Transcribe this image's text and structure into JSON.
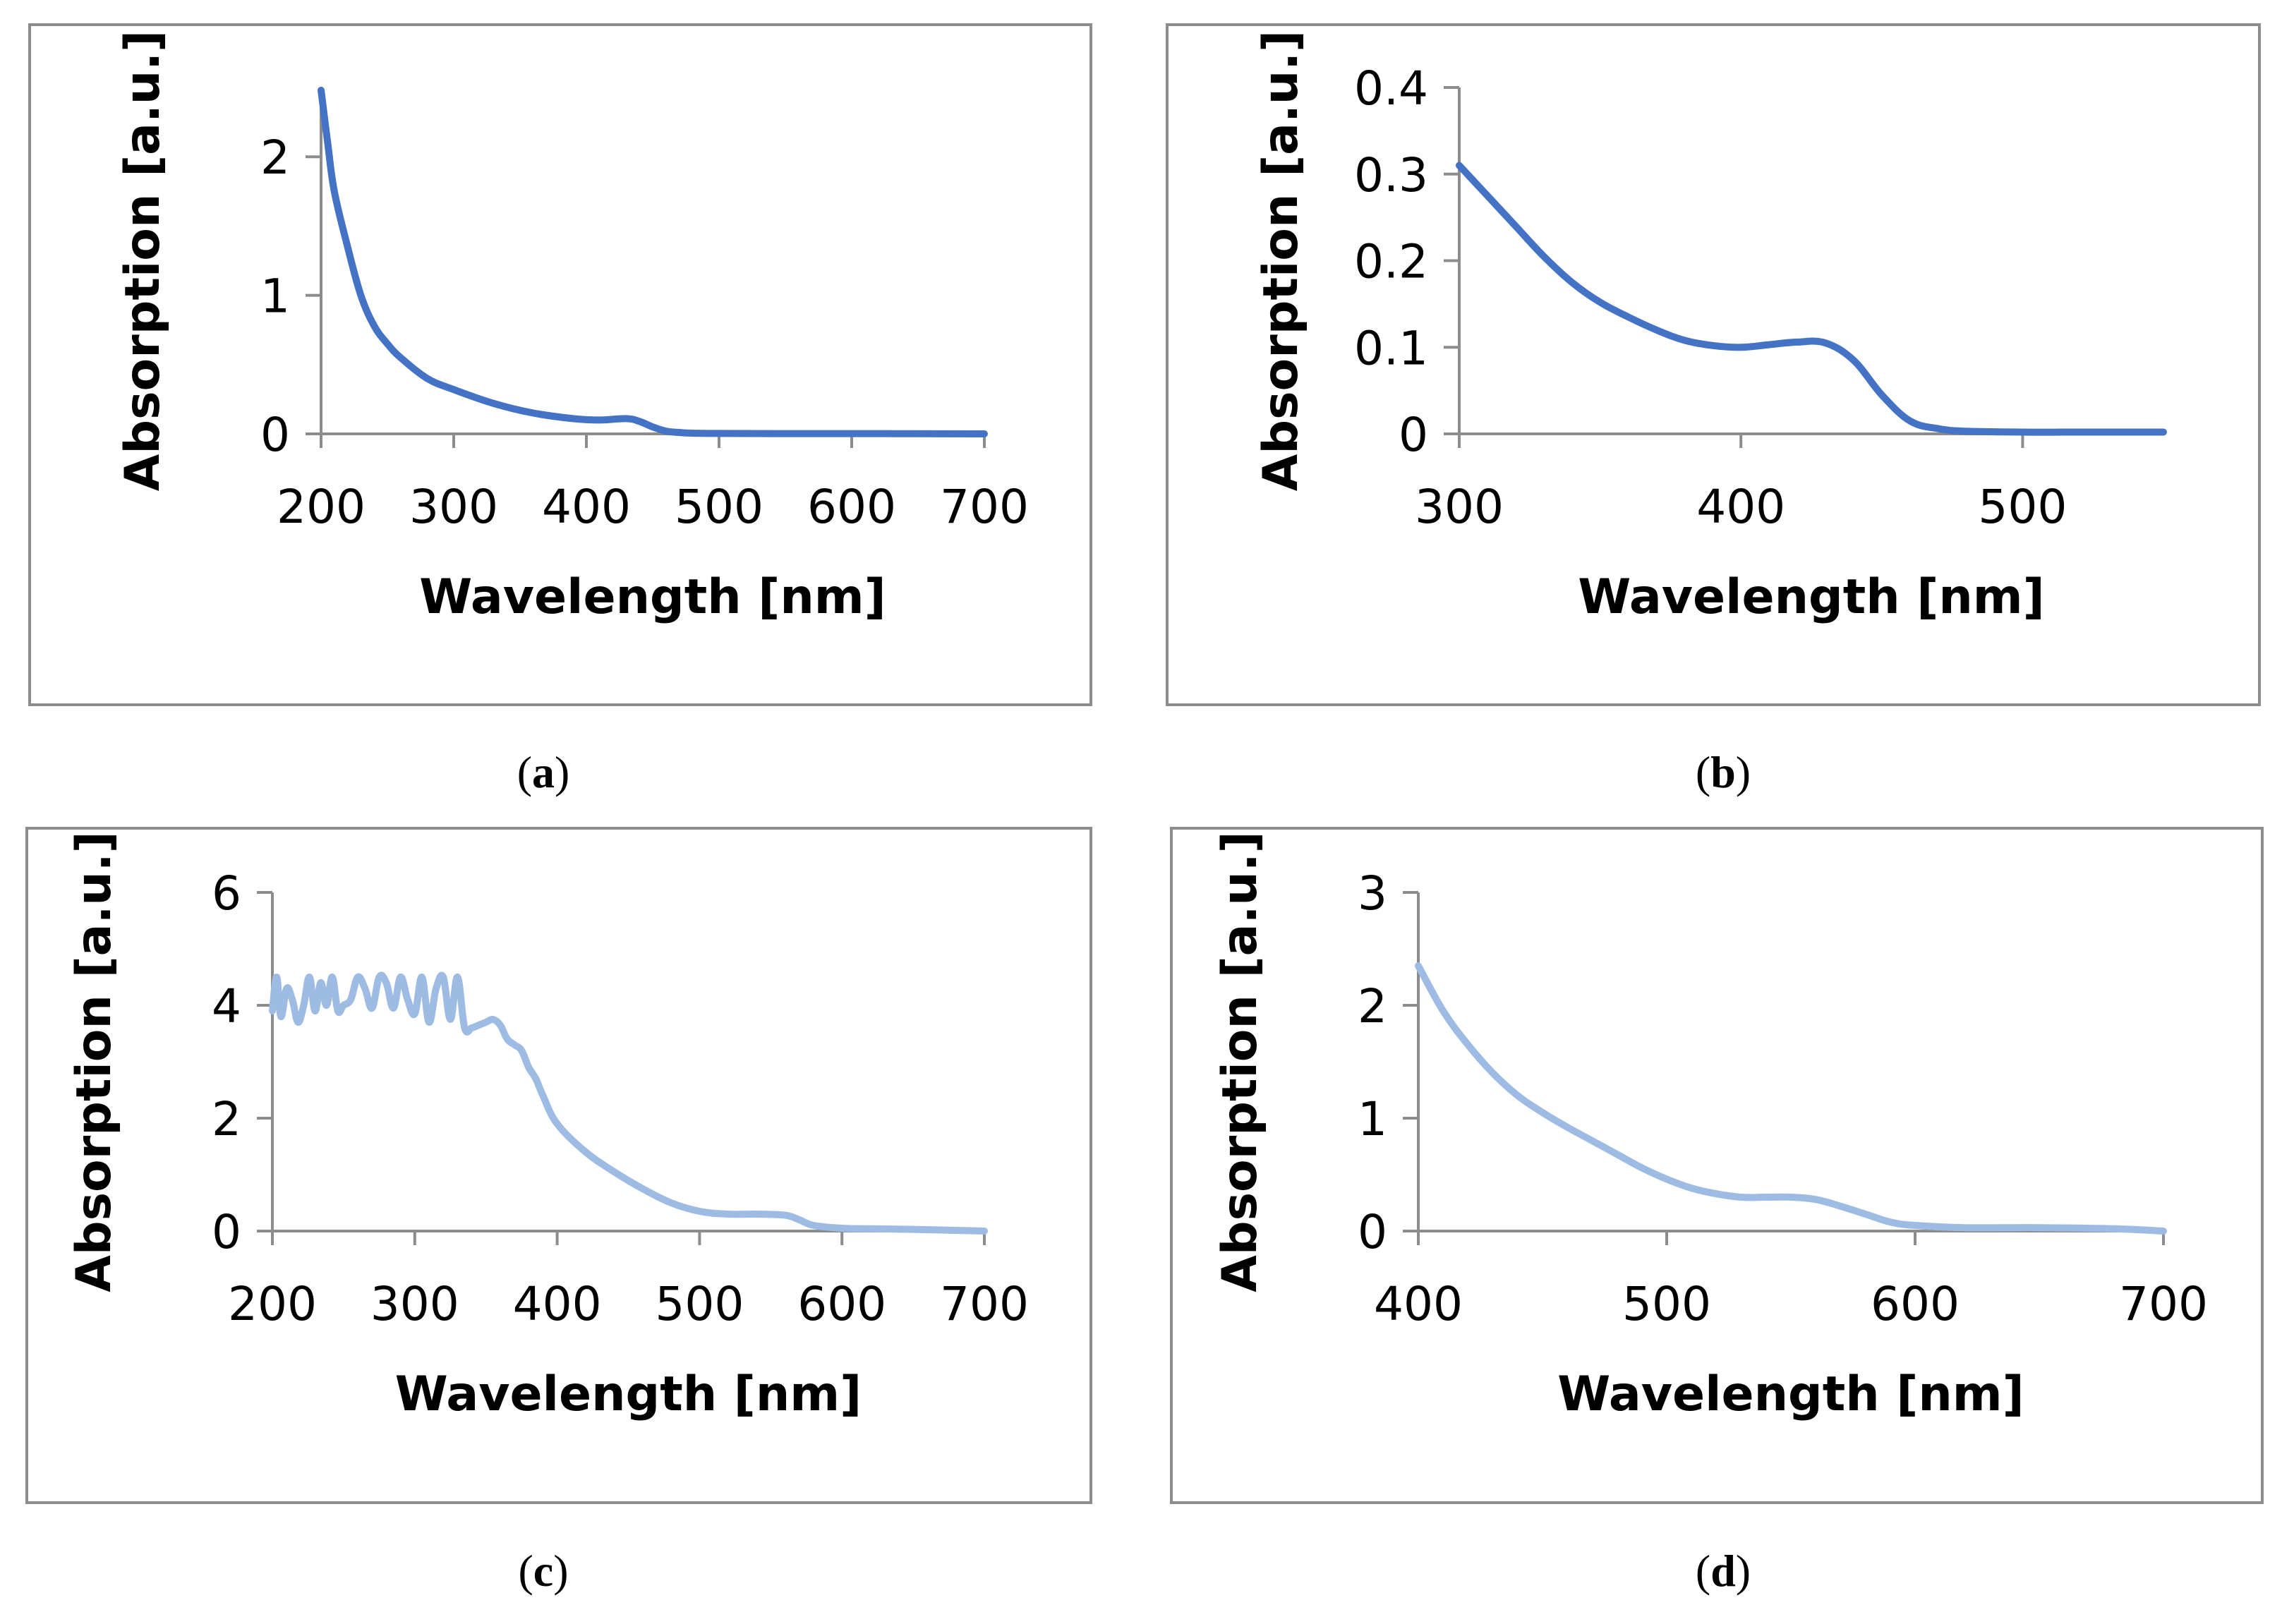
{
  "chart_data": [
    {
      "type": "line",
      "panel": "a",
      "caption": "a",
      "xlabel": "Wavelength [nm]",
      "ylabel": "Absorption [a.u.]",
      "xlim": [
        200,
        700
      ],
      "ylim": [
        0,
        2.5
      ],
      "xticks": [
        200,
        300,
        400,
        500,
        600,
        700
      ],
      "yticks": [
        0,
        1,
        2
      ],
      "color": "#4472c4",
      "series": [
        {
          "name": "absorption",
          "x": [
            200,
            205,
            210,
            220,
            230,
            240,
            250,
            260,
            280,
            300,
            330,
            360,
            390,
            410,
            430,
            440,
            450,
            460,
            470,
            480,
            500,
            550,
            600,
            650,
            700
          ],
          "y": [
            2.48,
            2.1,
            1.75,
            1.35,
            1.0,
            0.78,
            0.65,
            0.55,
            0.4,
            0.32,
            0.22,
            0.15,
            0.11,
            0.1,
            0.11,
            0.09,
            0.05,
            0.02,
            0.01,
            0.005,
            0.003,
            0.002,
            0.002,
            0.001,
            0.0
          ]
        }
      ]
    },
    {
      "type": "line",
      "panel": "b",
      "caption": "b",
      "xlabel": "Wavelength [nm]",
      "ylabel": "Absorption [a.u.]",
      "xlim": [
        300,
        550
      ],
      "ylim": [
        0,
        0.4
      ],
      "xticks": [
        300,
        400,
        500
      ],
      "yticks": [
        0,
        0.1,
        0.2,
        0.3,
        0.4
      ],
      "color": "#4472c4",
      "series": [
        {
          "name": "absorption",
          "x": [
            300,
            310,
            320,
            330,
            340,
            350,
            360,
            370,
            380,
            390,
            400,
            410,
            420,
            430,
            440,
            450,
            460,
            470,
            480,
            500,
            520,
            550
          ],
          "y": [
            0.31,
            0.275,
            0.24,
            0.205,
            0.175,
            0.152,
            0.135,
            0.12,
            0.108,
            0.102,
            0.1,
            0.103,
            0.106,
            0.105,
            0.085,
            0.045,
            0.015,
            0.006,
            0.003,
            0.002,
            0.002,
            0.002
          ]
        }
      ]
    },
    {
      "type": "line",
      "panel": "c",
      "caption": "c",
      "xlabel": "Wavelength [nm]",
      "ylabel": "Absorption [a.u.]",
      "xlim": [
        200,
        700
      ],
      "ylim": [
        0,
        6
      ],
      "xticks": [
        200,
        300,
        400,
        500,
        600,
        700
      ],
      "yticks": [
        0,
        2,
        4,
        6
      ],
      "color": "#9dbbe3",
      "series": [
        {
          "name": "absorption",
          "x": [
            200,
            203,
            206,
            210,
            214,
            218,
            222,
            226,
            230,
            234,
            238,
            242,
            246,
            250,
            255,
            260,
            265,
            270,
            275,
            280,
            285,
            290,
            295,
            300,
            305,
            310,
            315,
            320,
            325,
            330,
            335,
            340,
            345,
            350,
            355,
            360,
            365,
            370,
            375,
            380,
            385,
            390,
            400,
            420,
            440,
            460,
            480,
            500,
            520,
            540,
            560,
            570,
            580,
            600,
            620,
            650,
            700
          ],
          "y": [
            3.9,
            4.5,
            3.8,
            4.3,
            4.1,
            3.7,
            4.0,
            4.5,
            3.9,
            4.4,
            4.0,
            4.5,
            3.9,
            4.0,
            4.1,
            4.5,
            4.3,
            3.95,
            4.5,
            4.4,
            3.95,
            4.5,
            4.1,
            3.85,
            4.5,
            3.7,
            4.3,
            4.5,
            3.75,
            4.5,
            3.6,
            3.6,
            3.65,
            3.7,
            3.75,
            3.65,
            3.4,
            3.3,
            3.2,
            2.9,
            2.7,
            2.4,
            1.9,
            1.4,
            1.05,
            0.75,
            0.5,
            0.35,
            0.3,
            0.3,
            0.28,
            0.2,
            0.1,
            0.05,
            0.04,
            0.03,
            0.0
          ]
        }
      ]
    },
    {
      "type": "line",
      "panel": "d",
      "caption": "d",
      "xlabel": "Wavelength [nm]",
      "ylabel": "Absorption [a.u.]",
      "xlim": [
        400,
        700
      ],
      "ylim": [
        0,
        3
      ],
      "xticks": [
        400,
        500,
        600,
        700
      ],
      "yticks": [
        0,
        1,
        2,
        3
      ],
      "color": "#9dbbe3",
      "series": [
        {
          "name": "absorption",
          "x": [
            400,
            410,
            420,
            430,
            440,
            450,
            460,
            470,
            480,
            490,
            500,
            510,
            520,
            530,
            540,
            550,
            560,
            570,
            580,
            590,
            600,
            620,
            650,
            680,
            700
          ],
          "y": [
            2.35,
            1.95,
            1.65,
            1.4,
            1.2,
            1.05,
            0.92,
            0.8,
            0.68,
            0.56,
            0.46,
            0.38,
            0.33,
            0.3,
            0.3,
            0.3,
            0.28,
            0.22,
            0.15,
            0.08,
            0.05,
            0.03,
            0.03,
            0.02,
            0.0
          ]
        }
      ]
    }
  ]
}
